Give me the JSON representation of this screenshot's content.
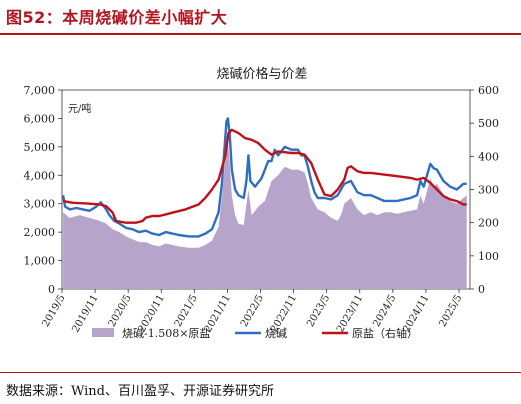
{
  "header": {
    "title": "图52：本周烧碱价差小幅扩大"
  },
  "source": "数据来源：Wind、百川盈孚、开源证券研究所",
  "colors": {
    "brand": "#b01520",
    "area": "#b6a4cb",
    "caustic": "#2e6fc1",
    "salt": "#c0111b"
  },
  "chart_data": {
    "type": "line",
    "title": "烧碱价格与价差",
    "ylabel": "元/吨",
    "ylim": [
      0,
      7000
    ],
    "y2lim": [
      0,
      600
    ],
    "yticks": [
      "0",
      "1,000",
      "2,000",
      "3,000",
      "4,000",
      "5,000",
      "6,000",
      "7,000"
    ],
    "y2ticks": [
      "0",
      "100",
      "200",
      "300",
      "400",
      "500",
      "600"
    ],
    "xlim": [
      2019.333,
      2025.5
    ],
    "xticks": [
      "2019/5",
      "2019/11",
      "2020/5",
      "2020/11",
      "2021/5",
      "2021/11",
      "2022/5",
      "2022/11",
      "2023/5",
      "2023/11",
      "2024/5",
      "2024/11",
      "2025/5"
    ],
    "legend_position": "bottom",
    "series": [
      {
        "name": "烧碱-1.508×原盐",
        "type": "area",
        "axis": "left",
        "color": "#b6a4cb",
        "points": [
          [
            2019.35,
            2700
          ],
          [
            2019.45,
            2500
          ],
          [
            2019.6,
            2600
          ],
          [
            2019.75,
            2500
          ],
          [
            2019.9,
            2400
          ],
          [
            2020.0,
            2300
          ],
          [
            2020.1,
            2100
          ],
          [
            2020.2,
            2000
          ],
          [
            2020.3,
            1850
          ],
          [
            2020.4,
            1750
          ],
          [
            2020.5,
            1650
          ],
          [
            2020.6,
            1650
          ],
          [
            2020.7,
            1550
          ],
          [
            2020.8,
            1500
          ],
          [
            2020.9,
            1600
          ],
          [
            2021.0,
            1550
          ],
          [
            2021.1,
            1500
          ],
          [
            2021.25,
            1450
          ],
          [
            2021.4,
            1450
          ],
          [
            2021.5,
            1550
          ],
          [
            2021.6,
            1700
          ],
          [
            2021.7,
            2200
          ],
          [
            2021.75,
            3200
          ],
          [
            2021.8,
            4500
          ],
          [
            2021.83,
            5400
          ],
          [
            2021.86,
            4700
          ],
          [
            2021.9,
            3300
          ],
          [
            2021.95,
            2600
          ],
          [
            2022.0,
            2300
          ],
          [
            2022.08,
            2250
          ],
          [
            2022.15,
            3500
          ],
          [
            2022.2,
            2600
          ],
          [
            2022.3,
            2900
          ],
          [
            2022.4,
            3100
          ],
          [
            2022.5,
            3800
          ],
          [
            2022.6,
            4000
          ],
          [
            2022.7,
            4300
          ],
          [
            2022.8,
            4200
          ],
          [
            2022.9,
            4200
          ],
          [
            2023.0,
            4100
          ],
          [
            2023.05,
            3700
          ],
          [
            2023.1,
            3200
          ],
          [
            2023.2,
            2800
          ],
          [
            2023.3,
            2700
          ],
          [
            2023.4,
            2500
          ],
          [
            2023.5,
            2400
          ],
          [
            2023.55,
            2600
          ],
          [
            2023.6,
            3000
          ],
          [
            2023.7,
            3200
          ],
          [
            2023.8,
            2800
          ],
          [
            2023.9,
            2600
          ],
          [
            2024.0,
            2700
          ],
          [
            2024.1,
            2600
          ],
          [
            2024.2,
            2700
          ],
          [
            2024.3,
            2700
          ],
          [
            2024.4,
            2650
          ],
          [
            2024.5,
            2700
          ],
          [
            2024.6,
            2750
          ],
          [
            2024.7,
            2800
          ],
          [
            2024.75,
            3300
          ],
          [
            2024.8,
            3000
          ],
          [
            2024.85,
            3450
          ],
          [
            2024.9,
            3900
          ],
          [
            2024.95,
            3600
          ],
          [
            2025.0,
            3700
          ],
          [
            2025.1,
            3300
          ],
          [
            2025.2,
            3100
          ],
          [
            2025.3,
            3000
          ],
          [
            2025.4,
            3200
          ],
          [
            2025.45,
            3300
          ]
        ]
      },
      {
        "name": "烧碱",
        "type": "line",
        "axis": "left",
        "color": "#2e6fc1",
        "points": [
          [
            2019.35,
            3300
          ],
          [
            2019.38,
            2900
          ],
          [
            2019.45,
            2800
          ],
          [
            2019.55,
            2850
          ],
          [
            2019.65,
            2800
          ],
          [
            2019.75,
            2750
          ],
          [
            2019.85,
            2900
          ],
          [
            2019.92,
            3050
          ],
          [
            2020.0,
            2800
          ],
          [
            2020.05,
            2600
          ],
          [
            2020.12,
            2400
          ],
          [
            2020.2,
            2300
          ],
          [
            2020.3,
            2150
          ],
          [
            2020.4,
            2100
          ],
          [
            2020.5,
            2000
          ],
          [
            2020.6,
            2050
          ],
          [
            2020.7,
            1950
          ],
          [
            2020.8,
            1900
          ],
          [
            2020.9,
            2000
          ],
          [
            2021.0,
            1950
          ],
          [
            2021.1,
            1900
          ],
          [
            2021.25,
            1850
          ],
          [
            2021.4,
            1850
          ],
          [
            2021.5,
            1950
          ],
          [
            2021.6,
            2100
          ],
          [
            2021.7,
            2700
          ],
          [
            2021.75,
            3700
          ],
          [
            2021.79,
            5000
          ],
          [
            2021.82,
            5900
          ],
          [
            2021.84,
            6000
          ],
          [
            2021.87,
            5400
          ],
          [
            2021.9,
            4200
          ],
          [
            2021.95,
            3500
          ],
          [
            2022.0,
            3300
          ],
          [
            2022.08,
            3200
          ],
          [
            2022.12,
            3800
          ],
          [
            2022.15,
            4700
          ],
          [
            2022.18,
            3800
          ],
          [
            2022.25,
            3600
          ],
          [
            2022.35,
            3900
          ],
          [
            2022.45,
            4500
          ],
          [
            2022.5,
            4500
          ],
          [
            2022.55,
            4900
          ],
          [
            2022.6,
            4700
          ],
          [
            2022.7,
            5000
          ],
          [
            2022.8,
            4900
          ],
          [
            2022.9,
            4900
          ],
          [
            2022.95,
            4700
          ],
          [
            2023.0,
            4700
          ],
          [
            2023.05,
            4300
          ],
          [
            2023.1,
            3800
          ],
          [
            2023.15,
            3400
          ],
          [
            2023.2,
            3200
          ],
          [
            2023.3,
            3200
          ],
          [
            2023.4,
            3150
          ],
          [
            2023.5,
            3300
          ],
          [
            2023.6,
            3700
          ],
          [
            2023.7,
            3800
          ],
          [
            2023.8,
            3400
          ],
          [
            2023.9,
            3300
          ],
          [
            2024.0,
            3300
          ],
          [
            2024.1,
            3200
          ],
          [
            2024.2,
            3100
          ],
          [
            2024.3,
            3100
          ],
          [
            2024.4,
            3100
          ],
          [
            2024.5,
            3150
          ],
          [
            2024.6,
            3200
          ],
          [
            2024.7,
            3300
          ],
          [
            2024.75,
            3800
          ],
          [
            2024.8,
            3600
          ],
          [
            2024.85,
            4000
          ],
          [
            2024.9,
            4400
          ],
          [
            2024.95,
            4250
          ],
          [
            2025.0,
            4200
          ],
          [
            2025.1,
            3800
          ],
          [
            2025.2,
            3600
          ],
          [
            2025.3,
            3500
          ],
          [
            2025.4,
            3700
          ],
          [
            2025.45,
            3700
          ]
        ]
      },
      {
        "name": "原盐（右轴）",
        "type": "line",
        "axis": "right",
        "color": "#c0111b",
        "points": [
          [
            2019.35,
            265
          ],
          [
            2019.5,
            260
          ],
          [
            2019.7,
            258
          ],
          [
            2019.9,
            255
          ],
          [
            2020.0,
            250
          ],
          [
            2020.05,
            240
          ],
          [
            2020.1,
            230
          ],
          [
            2020.15,
            205
          ],
          [
            2020.3,
            200
          ],
          [
            2020.45,
            200
          ],
          [
            2020.55,
            205
          ],
          [
            2020.6,
            215
          ],
          [
            2020.7,
            220
          ],
          [
            2020.8,
            220
          ],
          [
            2020.9,
            225
          ],
          [
            2021.0,
            230
          ],
          [
            2021.2,
            240
          ],
          [
            2021.4,
            255
          ],
          [
            2021.5,
            275
          ],
          [
            2021.6,
            300
          ],
          [
            2021.7,
            330
          ],
          [
            2021.8,
            400
          ],
          [
            2021.85,
            470
          ],
          [
            2021.9,
            480
          ],
          [
            2022.0,
            470
          ],
          [
            2022.1,
            455
          ],
          [
            2022.2,
            450
          ],
          [
            2022.3,
            440
          ],
          [
            2022.4,
            420
          ],
          [
            2022.5,
            405
          ],
          [
            2022.6,
            415
          ],
          [
            2022.8,
            410
          ],
          [
            2022.9,
            410
          ],
          [
            2023.0,
            405
          ],
          [
            2023.1,
            380
          ],
          [
            2023.2,
            330
          ],
          [
            2023.3,
            285
          ],
          [
            2023.4,
            280
          ],
          [
            2023.5,
            300
          ],
          [
            2023.6,
            330
          ],
          [
            2023.65,
            365
          ],
          [
            2023.7,
            370
          ],
          [
            2023.8,
            355
          ],
          [
            2023.9,
            350
          ],
          [
            2024.0,
            350
          ],
          [
            2024.2,
            345
          ],
          [
            2024.4,
            340
          ],
          [
            2024.6,
            335
          ],
          [
            2024.7,
            330
          ],
          [
            2024.8,
            335
          ],
          [
            2024.9,
            320
          ],
          [
            2025.0,
            300
          ],
          [
            2025.1,
            280
          ],
          [
            2025.2,
            270
          ],
          [
            2025.3,
            265
          ],
          [
            2025.4,
            255
          ],
          [
            2025.45,
            255
          ]
        ]
      }
    ]
  }
}
